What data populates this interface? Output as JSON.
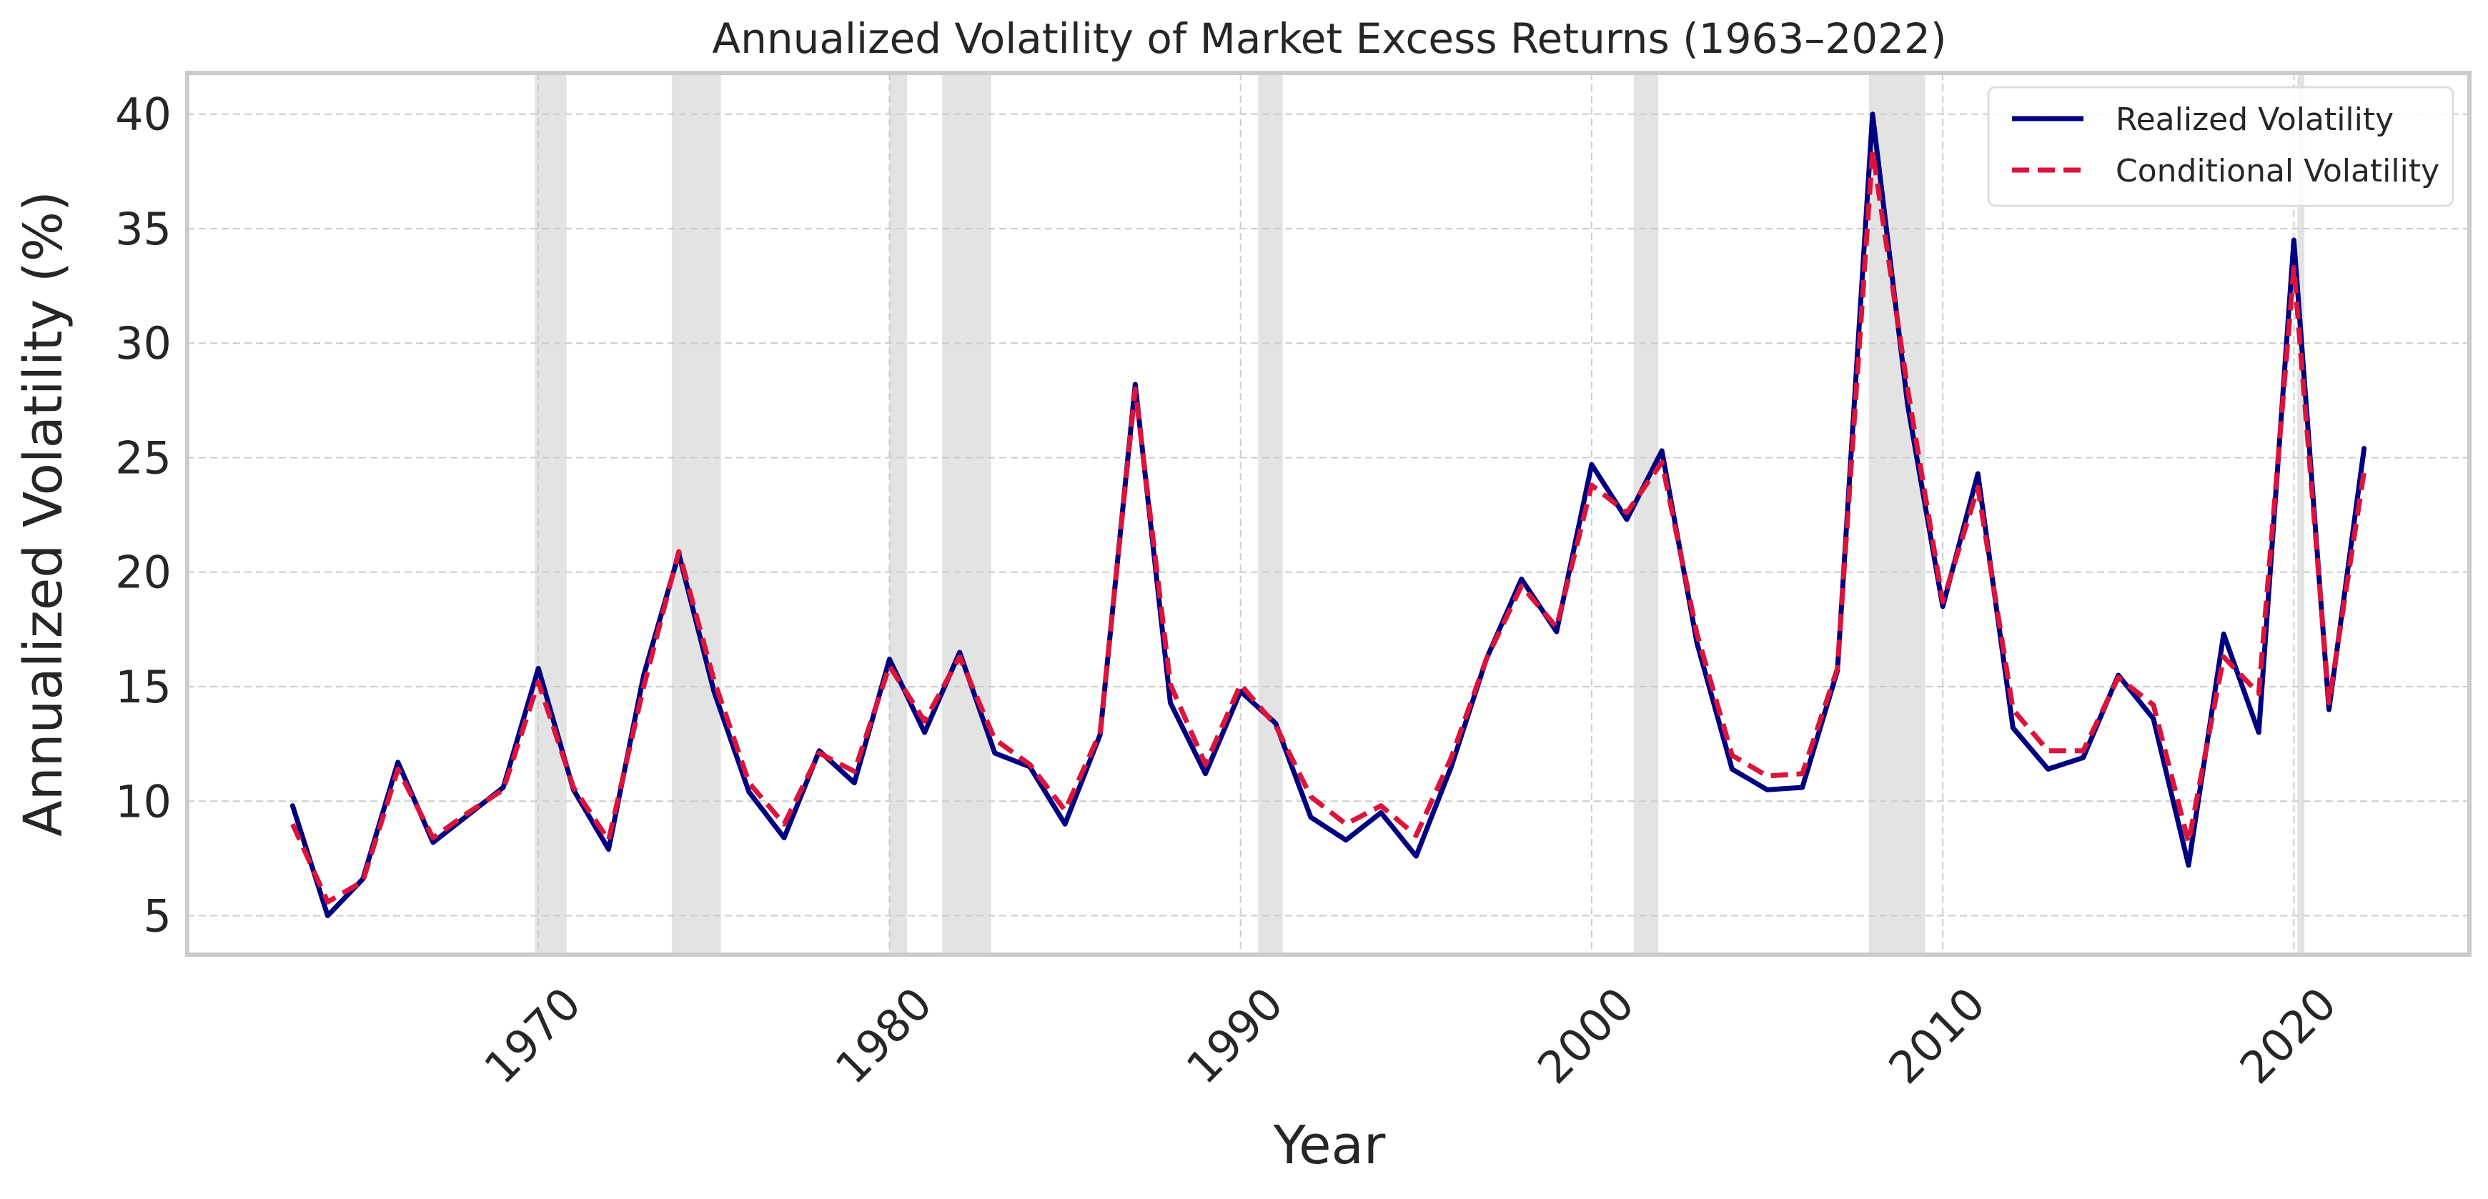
{
  "chart_data": {
    "type": "line",
    "title": "Annualized Volatility of Market Excess Returns (1963–2022)",
    "xlabel": "Year",
    "ylabel": "Annualized Volatility (%)",
    "xlim": [
      1960,
      2025
    ],
    "ylim": [
      3.3,
      41.8
    ],
    "xticks": [
      1970,
      1980,
      1990,
      2000,
      2010,
      2020
    ],
    "yticks": [
      5,
      10,
      15,
      20,
      25,
      30,
      35,
      40
    ],
    "grid": true,
    "legend_position": "top-right",
    "recession_shading": [
      [
        1969.9,
        1970.8
      ],
      [
        1973.8,
        1975.2
      ],
      [
        1980.0,
        1980.5
      ],
      [
        1981.5,
        1982.9
      ],
      [
        1990.5,
        1991.2
      ],
      [
        2001.2,
        2001.9
      ],
      [
        2007.9,
        2009.5
      ],
      [
        2020.1,
        2020.3
      ]
    ],
    "x": [
      1963,
      1964,
      1965,
      1966,
      1967,
      1968,
      1969,
      1970,
      1971,
      1972,
      1973,
      1974,
      1975,
      1976,
      1977,
      1978,
      1979,
      1980,
      1981,
      1982,
      1983,
      1984,
      1985,
      1986,
      1987,
      1988,
      1989,
      1990,
      1991,
      1992,
      1993,
      1994,
      1995,
      1996,
      1997,
      1998,
      1999,
      2000,
      2001,
      2002,
      2003,
      2004,
      2005,
      2006,
      2007,
      2008,
      2009,
      2010,
      2011,
      2012,
      2013,
      2014,
      2015,
      2016,
      2017,
      2018,
      2019,
      2020,
      2021,
      2022
    ],
    "series": [
      {
        "name": "Realized Volatility",
        "color": "#000080",
        "style": "solid",
        "values": [
          9.8,
          5.0,
          6.6,
          11.7,
          8.2,
          9.4,
          10.6,
          15.8,
          10.5,
          7.9,
          15.5,
          20.8,
          14.8,
          10.4,
          8.4,
          12.2,
          10.8,
          16.2,
          13.0,
          16.5,
          12.1,
          11.5,
          9.0,
          12.9,
          28.2,
          14.3,
          11.2,
          14.8,
          13.4,
          9.3,
          8.3,
          9.5,
          7.6,
          11.5,
          16.2,
          19.7,
          17.4,
          24.7,
          22.3,
          25.3,
          16.9,
          11.4,
          10.5,
          10.6,
          15.7,
          40.0,
          27.3,
          18.5,
          24.3,
          13.2,
          11.4,
          11.9,
          15.5,
          13.6,
          7.2,
          17.3,
          13.0,
          34.5,
          14.0,
          25.4
        ]
      },
      {
        "name": "Conditional Volatility",
        "color": "#dc143c",
        "style": "dashed",
        "values": [
          9.0,
          5.6,
          6.5,
          11.4,
          8.4,
          9.5,
          10.5,
          15.2,
          10.6,
          8.3,
          15.0,
          20.9,
          15.3,
          10.8,
          9.0,
          12.1,
          11.3,
          15.9,
          13.5,
          16.3,
          12.7,
          11.6,
          9.6,
          13.0,
          28.0,
          15.1,
          11.6,
          15.1,
          13.3,
          10.2,
          9.0,
          9.8,
          8.5,
          11.9,
          16.2,
          19.4,
          17.6,
          23.8,
          22.6,
          24.8,
          17.3,
          12.0,
          11.1,
          11.2,
          15.8,
          38.4,
          28.0,
          18.7,
          23.7,
          14.0,
          12.2,
          12.2,
          15.4,
          14.2,
          8.2,
          16.3,
          14.7,
          33.3,
          14.3,
          24.4
        ]
      }
    ]
  }
}
